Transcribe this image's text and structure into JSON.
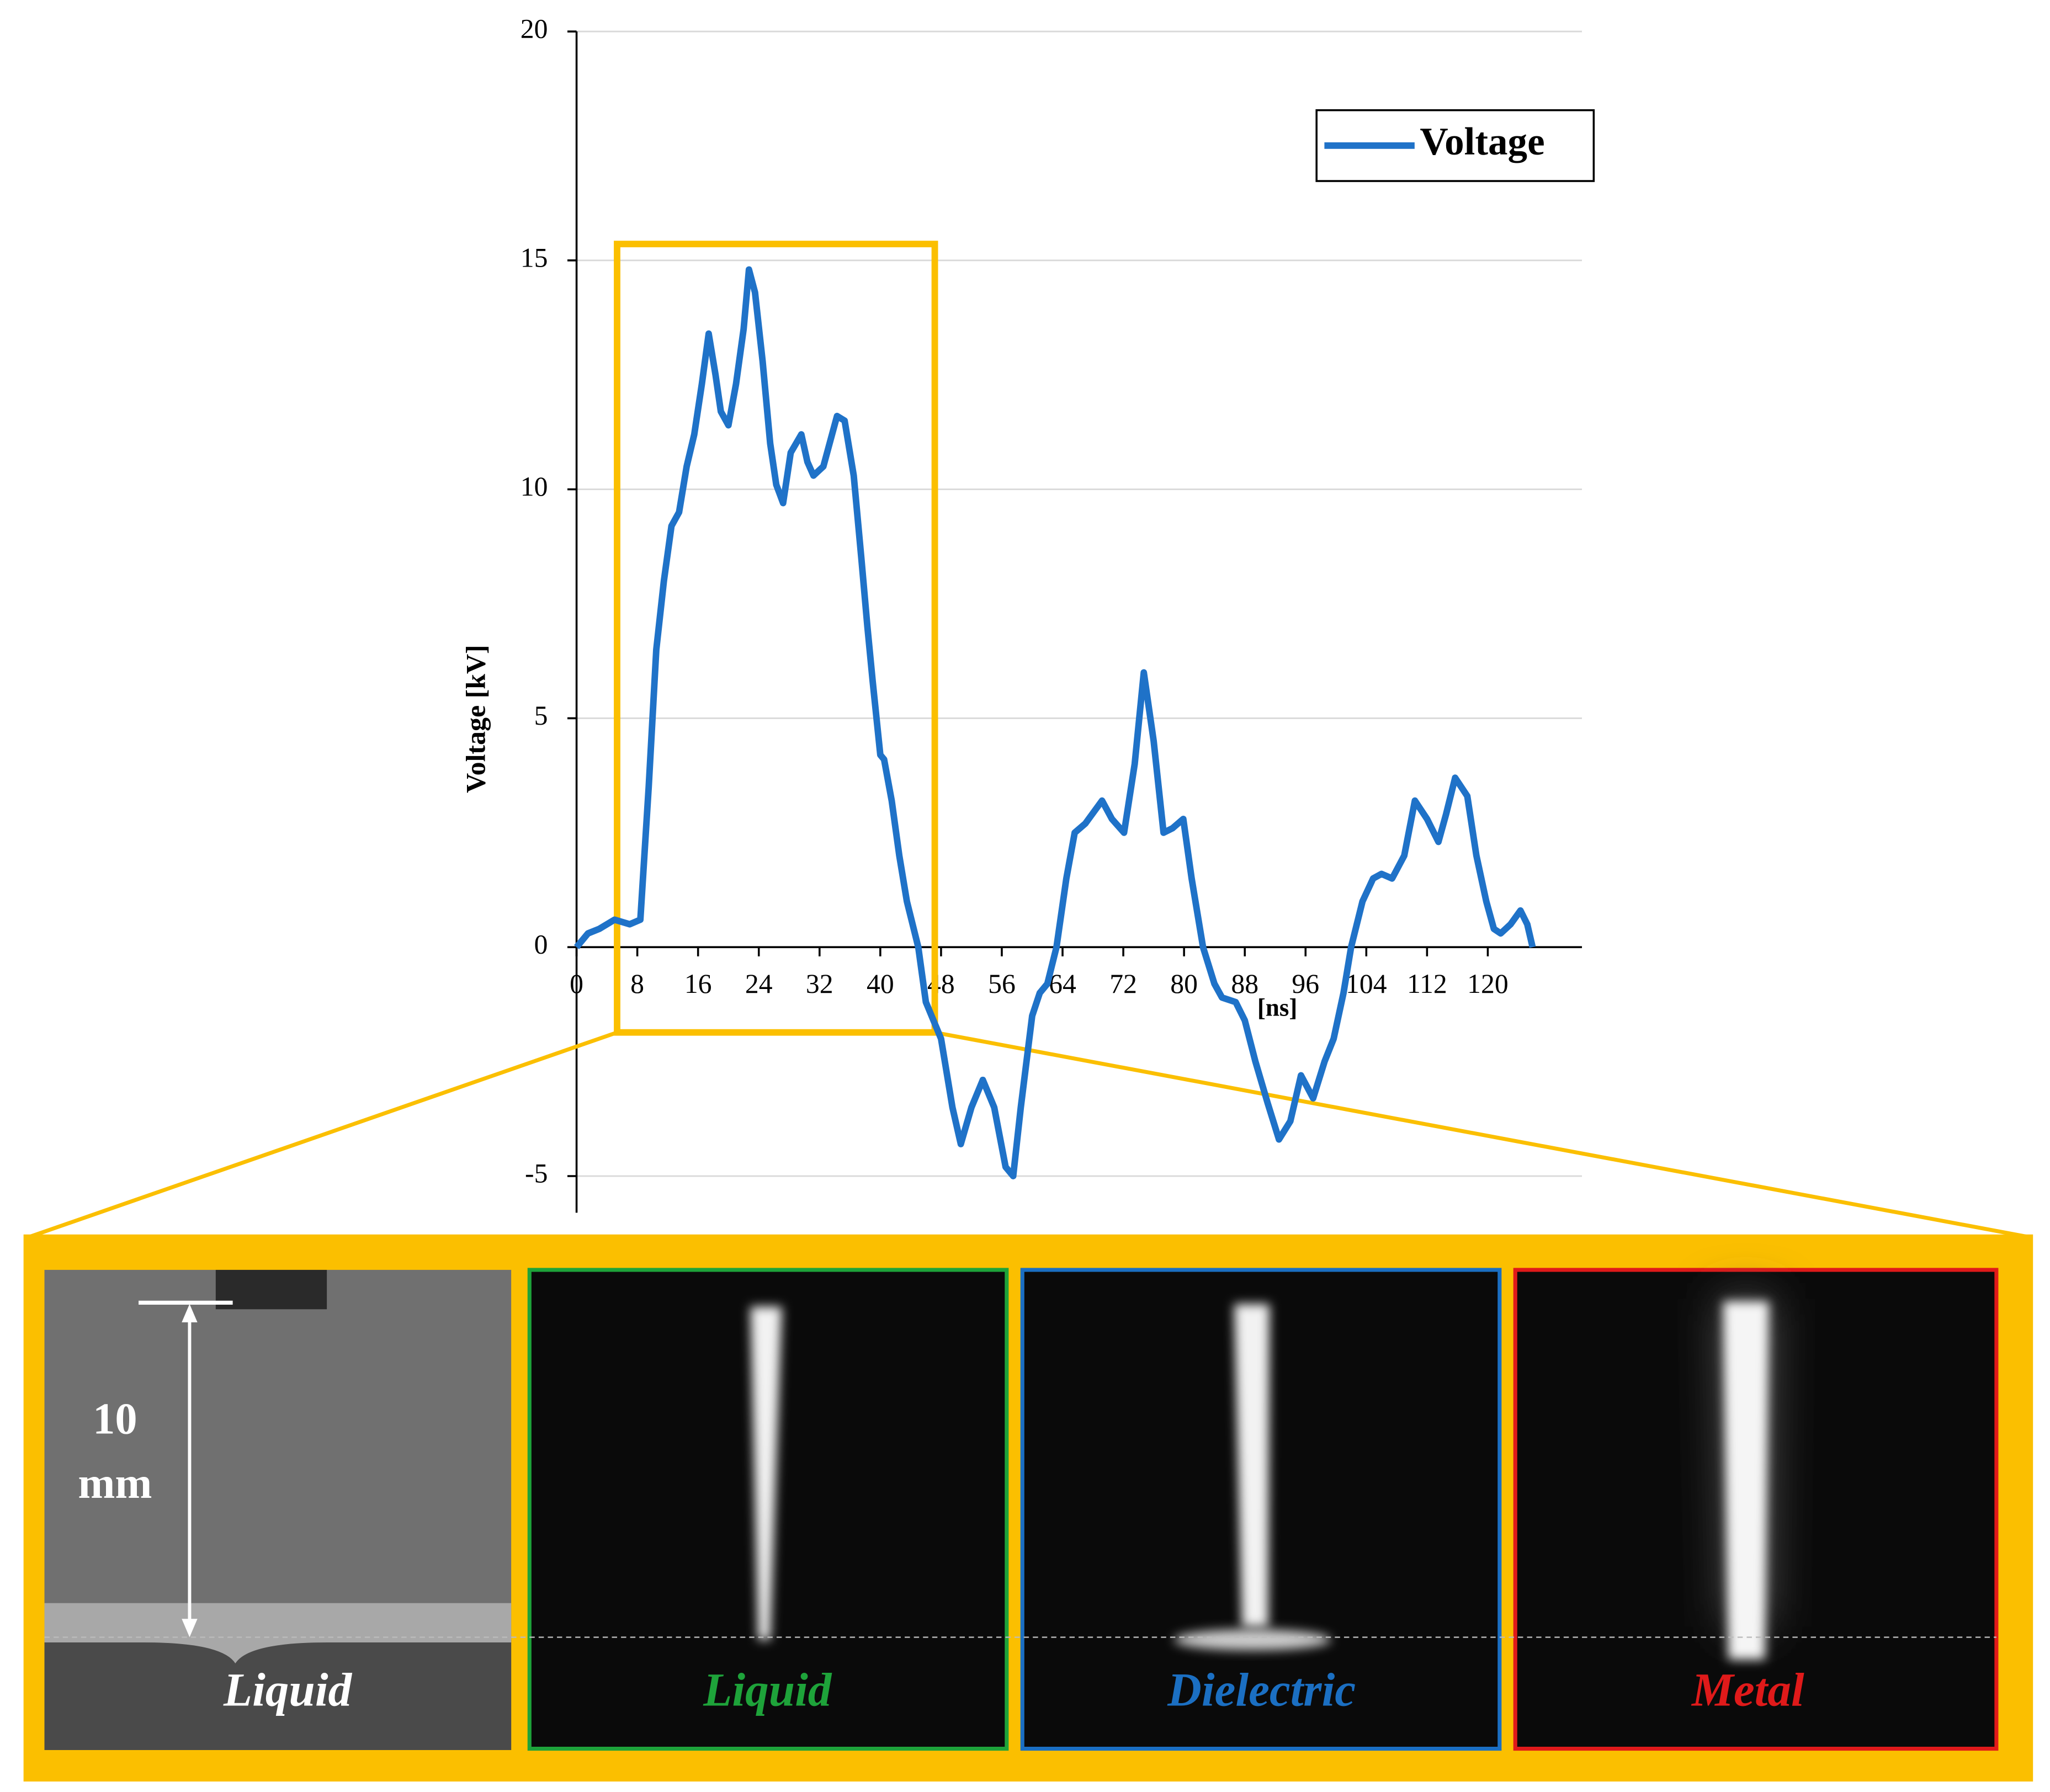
{
  "chart_data": {
    "type": "line",
    "y_label": "Voltage [kV]",
    "x_label": "[ns]",
    "x": [
      0,
      1.5,
      3,
      5,
      7,
      8.4,
      9.5,
      10.5,
      11.5,
      12.5,
      13.5,
      14.5,
      15.5,
      16.5,
      17.4,
      18.3,
      19,
      20,
      21,
      22,
      22.7,
      23.5,
      24.5,
      25.5,
      26.3,
      27.2,
      28.2,
      29.6,
      30.4,
      31.2,
      32.5,
      34.3,
      35.3,
      36.5,
      37.5,
      38.3,
      39,
      40,
      40.5,
      41.5,
      42.5,
      43.5,
      45,
      46,
      48,
      49.5,
      50.6,
      52,
      53.5,
      55,
      56.5,
      57.5,
      58.5,
      60,
      61,
      62,
      63.2,
      64.5,
      65.6,
      67,
      69.2,
      70.5,
      72.1,
      73.5,
      74.7,
      76,
      77.3,
      78.5,
      79.9,
      81,
      82.5,
      84,
      85,
      86.8,
      88,
      89.4,
      91,
      92.5,
      94,
      95.4,
      97,
      98.5,
      99.7,
      101,
      102,
      103.5,
      104.9,
      106,
      107.4,
      109,
      110.4,
      112,
      113.5,
      114.5,
      115.7,
      117.3,
      118.5,
      119.8,
      120.8,
      121.7,
      123,
      124.3,
      125.2,
      125.9
    ],
    "series": [
      {
        "name": "Voltage",
        "color": "#1f72c8",
        "values": [
          0,
          0.3,
          0.4,
          0.6,
          0.5,
          0.6,
          3.5,
          6.5,
          8,
          9.2,
          9.5,
          10.5,
          11.2,
          12.3,
          13.4,
          12.5,
          11.7,
          11.4,
          12.3,
          13.5,
          14.8,
          14.3,
          12.8,
          11,
          10.1,
          9.7,
          10.8,
          11.2,
          10.6,
          10.3,
          10.5,
          11.6,
          11.5,
          10.3,
          8.5,
          7,
          5.8,
          4.2,
          4.1,
          3.2,
          2,
          1,
          0,
          -1.2,
          -2,
          -3.5,
          -4.3,
          -3.5,
          -2.9,
          -3.5,
          -4.8,
          -5,
          -3.5,
          -1.5,
          -1,
          -0.8,
          0,
          1.5,
          2.5,
          2.7,
          3.2,
          2.8,
          2.5,
          4,
          6,
          4.5,
          2.5,
          2.6,
          2.8,
          1.5,
          0,
          -0.8,
          -1.1,
          -1.2,
          -1.6,
          -2.5,
          -3.4,
          -4.2,
          -3.8,
          -2.8,
          -3.3,
          -2.5,
          -2,
          -1,
          0,
          1,
          1.5,
          1.6,
          1.5,
          2,
          3.2,
          2.8,
          2.3,
          2.9,
          3.7,
          3.3,
          2,
          1,
          0.4,
          0.3,
          0.5,
          0.8,
          0.5,
          0
        ]
      }
    ],
    "xlim": [
      0,
      132.4
    ],
    "ylim": [
      -5.8,
      20
    ],
    "xticks": [
      0,
      8,
      16,
      24,
      32,
      40,
      48,
      56,
      64,
      72,
      80,
      88,
      96,
      104,
      112,
      120
    ],
    "yticks": [
      -5,
      0,
      5,
      10,
      15,
      20
    ],
    "grid": true,
    "legend": "top-right",
    "highlight_color": "#fbbf00"
  },
  "panel": {
    "scale_label": [
      "10",
      "mm"
    ],
    "images": [
      {
        "label": "Liquid",
        "color": "#ffffff"
      },
      {
        "label": "Liquid",
        "color": "#1ea33a"
      },
      {
        "label": "Dielectric",
        "color": "#1b6fc2"
      },
      {
        "label": "Metal",
        "color": "#e01a1a"
      }
    ]
  }
}
